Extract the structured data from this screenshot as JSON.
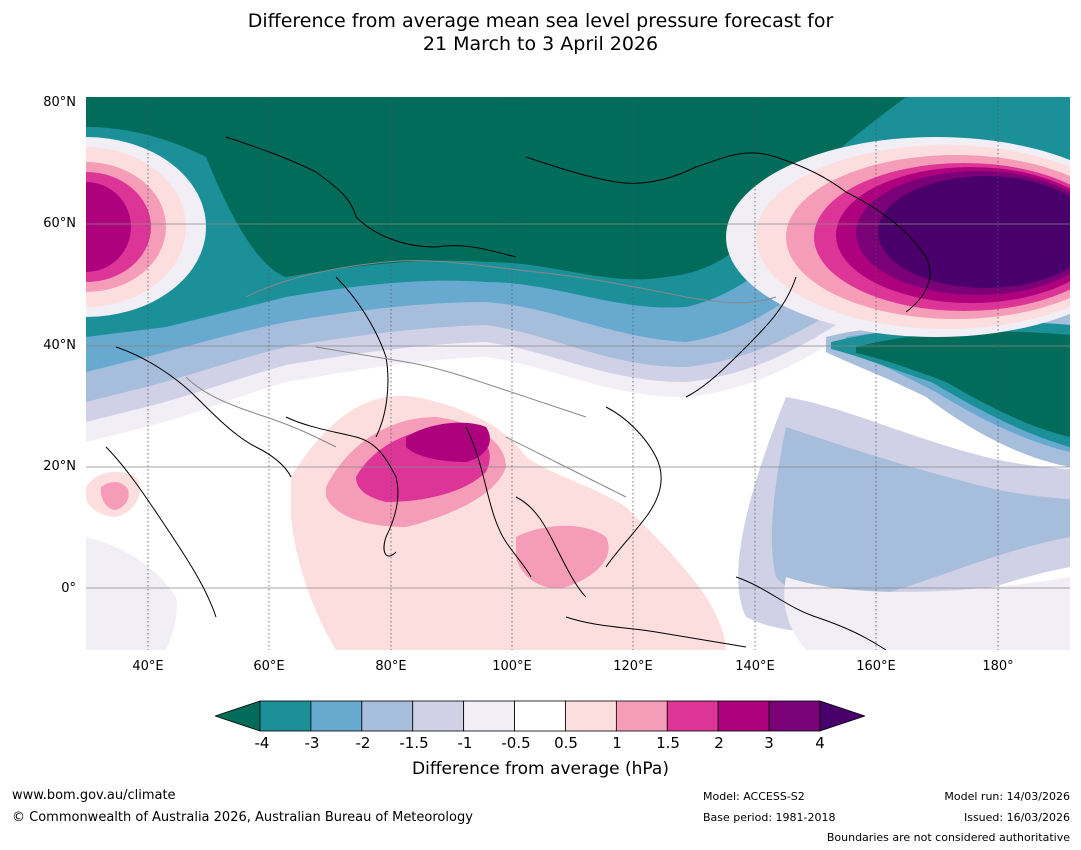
{
  "title": {
    "line1": "Difference from average mean sea level pressure forecast for",
    "line2": "21 March to 3 April 2026"
  },
  "axes": {
    "lat_labels": [
      "80°N",
      "60°N",
      "40°N",
      "20°N",
      "0°"
    ],
    "lon_labels": [
      "40°E",
      "60°E",
      "80°E",
      "100°E",
      "120°E",
      "140°E",
      "160°E",
      "180°"
    ]
  },
  "legend": {
    "title": "Difference from average (hPa)",
    "ticks": [
      "-4",
      "-3",
      "-2",
      "-1.5",
      "-1",
      "-0.5",
      "0.5",
      "1",
      "1.5",
      "2",
      "3",
      "4"
    ],
    "colors": [
      "#006c59",
      "#1c9099",
      "#67a9cf",
      "#a6bddb",
      "#d0d1e6",
      "#f1eef6",
      "#ffffff",
      "#fddede",
      "#f59cb9",
      "#dd3497",
      "#ae017e",
      "#7a0177",
      "#49006a"
    ]
  },
  "footer": {
    "website": "www.bom.gov.au/climate",
    "copyright": "© Commonwealth of Australia 2026, Australian Bureau of Meteorology",
    "model": "Model: ACCESS-S2",
    "base_period": "Base period: 1981-2018",
    "model_run": "Model run: 14/03/2026",
    "issued": "Issued: 16/03/2026",
    "disclaimer": "Boundaries are not considered authoritative"
  }
}
